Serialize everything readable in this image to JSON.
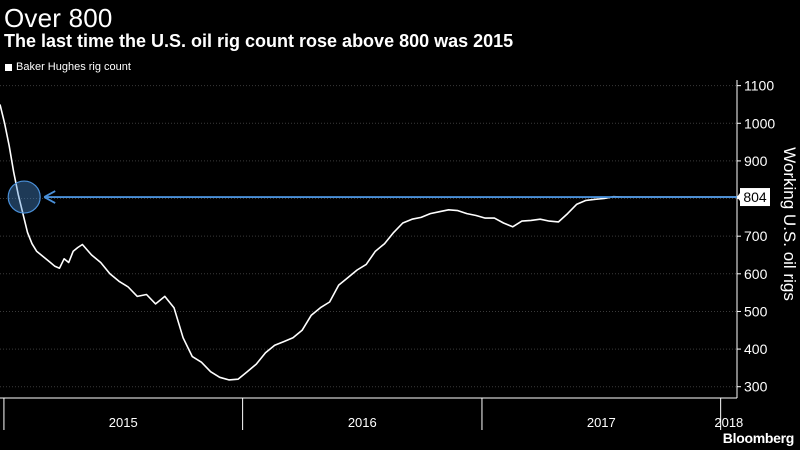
{
  "header": {
    "title": "Over 800",
    "subtitle": "The last time the U.S. oil rig count rose above 800 was 2015"
  },
  "footer": {
    "source": "Bloomberg"
  },
  "colors": {
    "background": "#000000",
    "line": "#ffffff",
    "highlight": "#4a90d9",
    "gridline": "#3a3a3a"
  },
  "chart_data": {
    "type": "line",
    "title": "Over 800",
    "subtitle": "The last time the U.S. oil rig count rose above 800 was 2015",
    "ylabel": "Working U.S. oil rigs",
    "ylim": [
      270,
      1115
    ],
    "xlim": [
      "2014-12-26",
      "2018-01-26"
    ],
    "yticks": [
      300,
      400,
      500,
      600,
      700,
      800,
      900,
      1000,
      1100
    ],
    "xtick_labels": [
      "2015",
      "2016",
      "2017",
      "2018"
    ],
    "grid": true,
    "legend": {
      "placement": "top-left",
      "entries": [
        "Baker Hughes rig count"
      ]
    },
    "series": [
      {
        "name": "Baker Hughes rig count",
        "x": [
          "2014-12-26",
          "2015-01-02",
          "2015-01-09",
          "2015-01-16",
          "2015-01-23",
          "2015-01-30",
          "2015-02-06",
          "2015-02-13",
          "2015-02-20",
          "2015-02-27",
          "2015-03-06",
          "2015-03-13",
          "2015-03-20",
          "2015-03-27",
          "2015-04-03",
          "2015-04-10",
          "2015-04-17",
          "2015-04-24",
          "2015-05-01",
          "2015-05-15",
          "2015-05-29",
          "2015-06-12",
          "2015-06-26",
          "2015-07-10",
          "2015-07-24",
          "2015-08-07",
          "2015-08-21",
          "2015-09-04",
          "2015-09-18",
          "2015-10-02",
          "2015-10-16",
          "2015-10-30",
          "2015-11-13",
          "2015-11-27",
          "2015-12-11",
          "2015-12-25",
          "2016-01-08",
          "2016-01-22",
          "2016-02-05",
          "2016-02-19",
          "2016-03-04",
          "2016-03-18",
          "2016-04-01",
          "2016-04-15",
          "2016-04-29",
          "2016-05-13",
          "2016-05-27",
          "2016-06-10",
          "2016-06-24",
          "2016-07-08",
          "2016-07-22",
          "2016-08-05",
          "2016-08-19",
          "2016-09-02",
          "2016-09-16",
          "2016-09-30",
          "2016-10-14",
          "2016-10-28",
          "2016-11-11",
          "2016-11-25",
          "2016-12-09",
          "2016-12-23",
          "2017-01-06",
          "2017-01-20",
          "2017-02-03",
          "2017-02-17",
          "2017-03-03",
          "2017-03-17",
          "2017-03-31",
          "2017-04-14",
          "2017-04-28",
          "2017-05-12",
          "2017-05-26",
          "2017-06-09",
          "2017-06-23",
          "2017-07-07",
          "2017-07-21",
          "2017-08-04",
          "2017-08-18",
          "2017-09-01",
          "2017-09-15",
          "2017-09-29",
          "2017-10-13",
          "2017-10-27",
          "2017-11-10",
          "2017-11-24",
          "2017-12-08",
          "2017-12-22",
          "2018-01-05",
          "2018-01-12",
          "2018-01-19",
          "2018-01-26"
        ],
        "y": [
          1050,
          1000,
          940,
          870,
          810,
          760,
          710,
          680,
          660,
          650,
          640,
          630,
          620,
          615,
          640,
          630,
          660,
          670,
          678,
          650,
          630,
          600,
          580,
          565,
          540,
          545,
          520,
          540,
          510,
          430,
          380,
          365,
          340,
          325,
          318,
          320,
          340,
          360,
          390,
          410,
          420,
          430,
          450,
          490,
          510,
          525,
          570,
          590,
          610,
          625,
          660,
          680,
          710,
          735,
          745,
          750,
          760,
          765,
          770,
          768,
          760,
          755,
          748,
          748,
          735,
          725,
          740,
          742,
          745,
          740,
          738,
          760,
          785,
          795,
          798,
          800,
          805,
          804,
          804,
          804,
          804,
          804,
          804,
          804,
          804,
          804,
          804,
          804,
          804,
          804,
          804,
          804
        ]
      }
    ],
    "annotations": [
      {
        "type": "reference_line",
        "y": 804,
        "label": "804",
        "color": "#4a90d9"
      },
      {
        "type": "highlight_circle",
        "x": "2015-02-01",
        "y": 804
      }
    ]
  }
}
